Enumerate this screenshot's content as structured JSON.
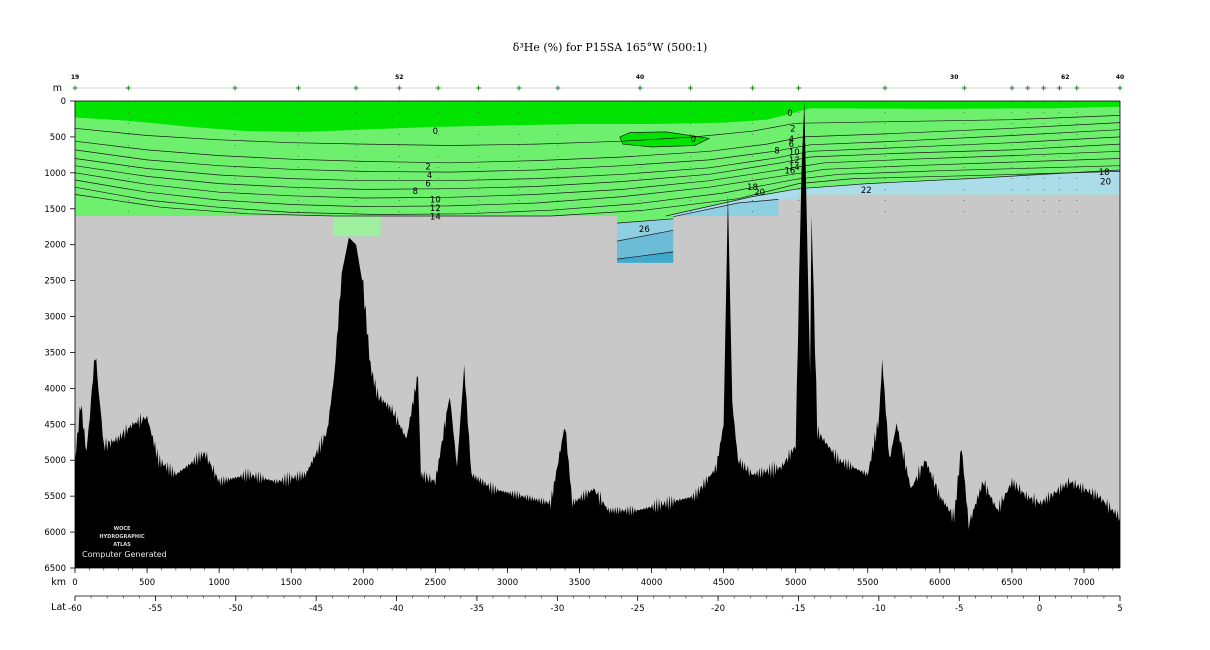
{
  "chart_data": {
    "type": "section",
    "title": "δ³He (%) for P15SA 165°W (500:1)",
    "depth_unit": "m",
    "distance_unit": "km",
    "lat_label": "Lat",
    "xlim_km": [
      0,
      7250
    ],
    "ylim_m": [
      0,
      6500
    ],
    "depth_ticks": [
      0,
      500,
      1000,
      1500,
      2000,
      2500,
      3000,
      3500,
      4000,
      4500,
      5000,
      5500,
      6000,
      6500
    ],
    "km_ticks": [
      0,
      500,
      1000,
      1500,
      2000,
      2500,
      3000,
      3500,
      4000,
      4500,
      5000,
      5500,
      6000,
      6500,
      7000
    ],
    "lat_ticks": [
      -60,
      -55,
      -50,
      -45,
      -40,
      -35,
      -30,
      -25,
      -20,
      -15,
      -10,
      -5,
      0,
      5
    ],
    "station_numbers": [
      {
        "label": "19",
        "km": 0
      },
      {
        "label": "52",
        "km": 2250
      },
      {
        "label": "40",
        "km": 3920
      },
      {
        "label": "30",
        "km": 6100
      },
      {
        "label": "62",
        "km": 6870
      },
      {
        "label": "40",
        "km": 7250
      }
    ],
    "station_km": [
      0,
      370,
      1110,
      1550,
      1950,
      2250,
      2520,
      2800,
      3080,
      3350,
      3920,
      4270,
      4700,
      5020,
      5620,
      6170,
      6500,
      6610,
      6720,
      6830,
      6950,
      7250
    ],
    "contour_levels": [
      0,
      2,
      4,
      6,
      8,
      10,
      12,
      14,
      16,
      18,
      20,
      22,
      24,
      26
    ],
    "contour_labels": [
      {
        "text": "0",
        "km": 4960,
        "depth": 170
      },
      {
        "text": "0",
        "km": 2500,
        "depth": 420
      },
      {
        "text": "0",
        "km": 4290,
        "depth": 530
      },
      {
        "text": "2",
        "km": 4980,
        "depth": 380
      },
      {
        "text": "4",
        "km": 4970,
        "depth": 530
      },
      {
        "text": "6",
        "km": 4970,
        "depth": 600
      },
      {
        "text": "8",
        "km": 4870,
        "depth": 690
      },
      {
        "text": "10",
        "km": 4990,
        "depth": 710
      },
      {
        "text": "12",
        "km": 4990,
        "depth": 820
      },
      {
        "text": "14",
        "km": 4990,
        "depth": 920
      },
      {
        "text": "16",
        "km": 4960,
        "depth": 970
      },
      {
        "text": "18",
        "km": 4700,
        "depth": 1200
      },
      {
        "text": "20",
        "km": 4750,
        "depth": 1270
      },
      {
        "text": "22",
        "km": 5490,
        "depth": 1240
      },
      {
        "text": "18",
        "km": 7140,
        "depth": 990
      },
      {
        "text": "20",
        "km": 7150,
        "depth": 1120
      },
      {
        "text": "2",
        "km": 2450,
        "depth": 910
      },
      {
        "text": "4",
        "km": 2460,
        "depth": 1030
      },
      {
        "text": "6",
        "km": 2450,
        "depth": 1150
      },
      {
        "text": "8",
        "km": 2360,
        "depth": 1250
      },
      {
        "text": "10",
        "km": 2500,
        "depth": 1370
      },
      {
        "text": "12",
        "km": 2500,
        "depth": 1490
      },
      {
        "text": "14",
        "km": 2500,
        "depth": 1610
      },
      {
        "text": "26",
        "km": 3950,
        "depth": 1780
      }
    ],
    "color_scale": [
      {
        "range": "0 and below",
        "color": "#00e400"
      },
      {
        "range": "0 to 20",
        "color": "#6ef06e"
      },
      {
        "range": "20 to 22",
        "color": "#aadcea"
      },
      {
        "range": "22 to 24",
        "color": "#8fcfe2"
      },
      {
        "range": "24 to 26",
        "color": "#6cbcd8"
      },
      {
        "range": "26 and above",
        "color": "#42a9ce"
      }
    ],
    "grid": false
  },
  "colors": {
    "no_data": "#c8c8c8",
    "bathymetry": "#000000",
    "station_tick": "#1a8a1a"
  },
  "watermark": {
    "lines": [
      "WOCE",
      "HYDROGRAPHIC",
      "ATLAS"
    ],
    "computer_generated": "Computer Generated"
  }
}
